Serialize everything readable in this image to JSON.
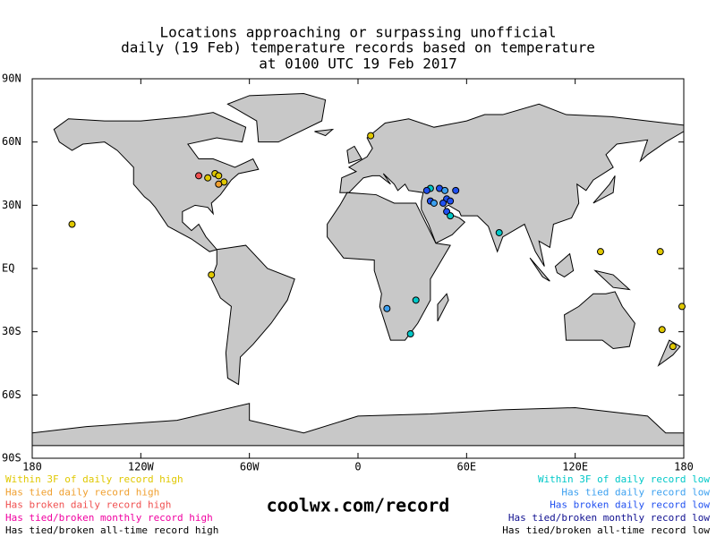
{
  "map": {
    "title": [
      "Locations approaching or surpassing unofficial",
      "daily (19 Feb) temperature records based on temperature",
      "at 0100 UTC 19 Feb 2017"
    ],
    "xlim": [
      -180,
      180
    ],
    "ylim": [
      -90,
      90
    ],
    "xticks": [
      {
        "value": -180,
        "label": "180"
      },
      {
        "value": -120,
        "label": "120W"
      },
      {
        "value": -60,
        "label": "60W"
      },
      0,
      {
        "value": 60,
        "label": "60E"
      },
      {
        "value": 120,
        "label": "120E"
      },
      {
        "value": 180,
        "label": "180"
      }
    ],
    "yticks": [
      {
        "value": -90,
        "label": "90S"
      },
      {
        "value": -60,
        "label": "60S"
      },
      {
        "value": -30,
        "label": "30S"
      },
      {
        "value": 0,
        "label": "EQ"
      },
      {
        "value": 30,
        "label": "30N"
      },
      {
        "value": 60,
        "label": "60N"
      },
      {
        "value": 90,
        "label": "90N"
      }
    ],
    "legend_high": [
      {
        "label": "Within 3F of daily record high",
        "color": "#e0c800"
      },
      {
        "label": "Has tied daily record high",
        "color": "#f0a030"
      },
      {
        "label": "Has broken daily record high",
        "color": "#f05050"
      },
      {
        "label": "Has tied/broken monthly record high",
        "color": "#f000a0"
      },
      {
        "label": "Has tied/broken all-time record high",
        "color": "#000000"
      }
    ],
    "legend_low": [
      {
        "label": "Within 3F of daily record low",
        "color": "#00c8c8"
      },
      {
        "label": "Has tied daily record low",
        "color": "#3ca0f0"
      },
      {
        "label": "Has broken daily record low",
        "color": "#2050f0"
      },
      {
        "label": "Has tied/broken monthly record low",
        "color": "#101090"
      },
      {
        "label": "Has tied/broken all-time record low",
        "color": "#000000"
      }
    ],
    "points": [
      {
        "lon": 7,
        "lat": 63,
        "color": "#e0c800"
      },
      {
        "lon": -158,
        "lat": 21,
        "color": "#e0c800"
      },
      {
        "lon": -83,
        "lat": 43,
        "color": "#e0c800"
      },
      {
        "lon": -79,
        "lat": 45,
        "color": "#e0c800"
      },
      {
        "lon": -77,
        "lat": 44,
        "color": "#e0c800"
      },
      {
        "lon": -74,
        "lat": 41,
        "color": "#e0c800"
      },
      {
        "lon": -77,
        "lat": 40,
        "color": "#f0a030"
      },
      {
        "lon": -88,
        "lat": 44,
        "color": "#f05050"
      },
      {
        "lon": -81,
        "lat": -3,
        "color": "#e0c800"
      },
      {
        "lon": 134,
        "lat": 8,
        "color": "#e0c800"
      },
      {
        "lon": 167,
        "lat": 8,
        "color": "#e0c800"
      },
      {
        "lon": 179,
        "lat": -18,
        "color": "#e0c800"
      },
      {
        "lon": 168,
        "lat": -29,
        "color": "#e0c800"
      },
      {
        "lon": 174,
        "lat": -37,
        "color": "#e0c800"
      },
      {
        "lon": 16,
        "lat": -19,
        "color": "#3ca0f0"
      },
      {
        "lon": 32,
        "lat": -15,
        "color": "#00c8c8"
      },
      {
        "lon": 29,
        "lat": -31,
        "color": "#00c8c8"
      },
      {
        "lon": 78,
        "lat": 17,
        "color": "#00c8c8"
      },
      {
        "lon": 40,
        "lat": 38,
        "color": "#00c8c8"
      },
      {
        "lon": 38,
        "lat": 37,
        "color": "#2050f0"
      },
      {
        "lon": 45,
        "lat": 38,
        "color": "#2050f0"
      },
      {
        "lon": 48,
        "lat": 37,
        "color": "#3ca0f0"
      },
      {
        "lon": 54,
        "lat": 37,
        "color": "#2050f0"
      },
      {
        "lon": 49,
        "lat": 33,
        "color": "#2050f0"
      },
      {
        "lon": 51,
        "lat": 32,
        "color": "#2050f0"
      },
      {
        "lon": 47,
        "lat": 31,
        "color": "#2050f0"
      },
      {
        "lon": 40,
        "lat": 32,
        "color": "#2050f0"
      },
      {
        "lon": 42,
        "lat": 31,
        "color": "#3ca0f0"
      },
      {
        "lon": 49,
        "lat": 27,
        "color": "#2050f0"
      },
      {
        "lon": 51,
        "lat": 25,
        "color": "#00c8c8"
      }
    ]
  },
  "site": "coolwx.com/record"
}
